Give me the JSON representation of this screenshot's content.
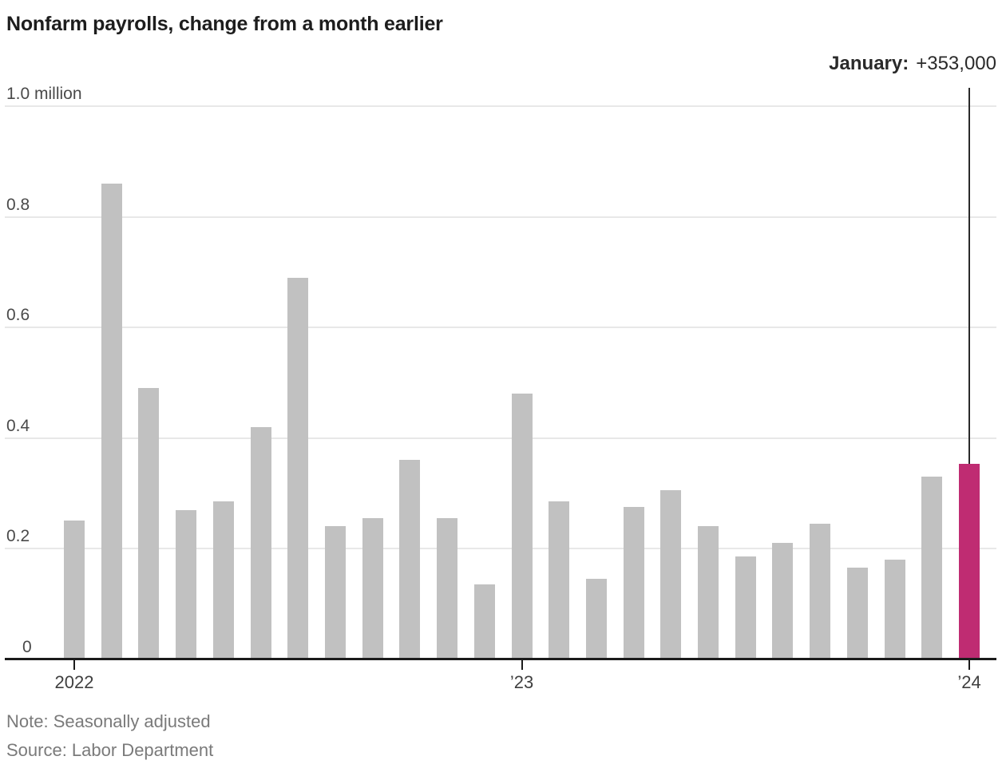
{
  "title": "Nonfarm payrolls, change from a month earlier",
  "annotation": {
    "label": "January:",
    "value": "+353,000"
  },
  "note": "Note: Seasonally adjusted",
  "source": "Source: Labor Department",
  "chart_data": {
    "type": "bar",
    "title": "Nonfarm payrolls, change from a month earlier",
    "unit": "millions",
    "categories": [
      "Jan 2022",
      "Feb 2022",
      "Mar 2022",
      "Apr 2022",
      "May 2022",
      "Jun 2022",
      "Jul 2022",
      "Aug 2022",
      "Sep 2022",
      "Oct 2022",
      "Nov 2022",
      "Dec 2022",
      "Jan 2023",
      "Feb 2023",
      "Mar 2023",
      "Apr 2023",
      "May 2023",
      "Jun 2023",
      "Jul 2023",
      "Aug 2023",
      "Sep 2023",
      "Oct 2023",
      "Nov 2023",
      "Dec 2023",
      "Jan 2024"
    ],
    "values": [
      0.25,
      0.86,
      0.49,
      0.27,
      0.285,
      0.42,
      0.69,
      0.24,
      0.255,
      0.36,
      0.255,
      0.135,
      0.48,
      0.285,
      0.145,
      0.275,
      0.305,
      0.24,
      0.185,
      0.21,
      0.245,
      0.165,
      0.18,
      0.33,
      0.353
    ],
    "highlight_index": 24,
    "highlight_label": "January: +353,000",
    "ylim": [
      0,
      1.0
    ],
    "grid": true,
    "legend": "none",
    "y_ticks": [
      {
        "label": "1.0 million",
        "value": 1.0
      },
      {
        "label": "0.8",
        "value": 0.8
      },
      {
        "label": "0.6",
        "value": 0.6
      },
      {
        "label": "0.4",
        "value": 0.4
      },
      {
        "label": "0.2",
        "value": 0.2
      },
      {
        "label": "0",
        "value": 0
      }
    ],
    "x_ticks": [
      {
        "label": "2022",
        "index": 0
      },
      {
        "label": "’23",
        "index": 12
      },
      {
        "label": "’24",
        "index": 24
      }
    ],
    "colors": {
      "bar": "#c1c1c1",
      "highlight": "#bf2c72",
      "gridline": "#e8e8e8",
      "axis": "#1b1b1b",
      "annotation_line": "#2a2a2a"
    }
  }
}
